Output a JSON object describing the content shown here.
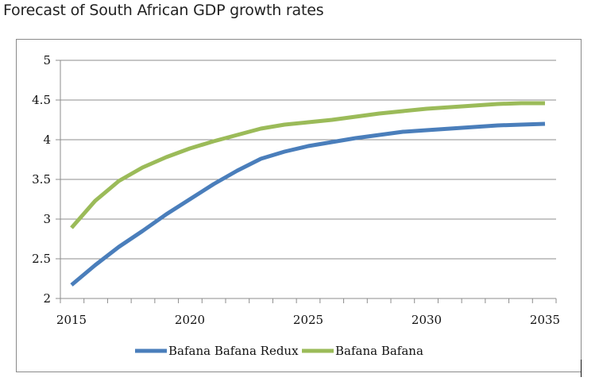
{
  "chart_data": {
    "type": "line",
    "title": "Forecast of South African GDP growth rates",
    "xlabel": "",
    "ylabel": "",
    "xlim": [
      2015,
      2035
    ],
    "ylim": [
      2,
      5
    ],
    "xticks": [
      "2015",
      "2020",
      "2025",
      "2030",
      "2035"
    ],
    "yticks": [
      "2",
      "2.5",
      "3",
      "3.5",
      "4",
      "4.5",
      "5"
    ],
    "grid": "horizontal",
    "legend_position": "bottom",
    "x": [
      2015,
      2016,
      2017,
      2018,
      2019,
      2020,
      2021,
      2022,
      2023,
      2024,
      2025,
      2026,
      2027,
      2028,
      2029,
      2030,
      2031,
      2032,
      2033,
      2034,
      2035
    ],
    "series": [
      {
        "name": "Bafana Bafana Redux",
        "color": "#4a7ebb",
        "values": [
          2.17,
          2.42,
          2.65,
          2.85,
          3.06,
          3.25,
          3.44,
          3.61,
          3.76,
          3.85,
          3.92,
          3.97,
          4.02,
          4.06,
          4.1,
          4.12,
          4.14,
          4.16,
          4.18,
          4.19,
          4.2
        ]
      },
      {
        "name": "Bafana Bafana",
        "color": "#9bbb59",
        "values": [
          2.89,
          3.23,
          3.48,
          3.65,
          3.78,
          3.89,
          3.98,
          4.06,
          4.14,
          4.19,
          4.22,
          4.25,
          4.29,
          4.33,
          4.36,
          4.39,
          4.41,
          4.43,
          4.45,
          4.46,
          4.46
        ]
      }
    ]
  }
}
